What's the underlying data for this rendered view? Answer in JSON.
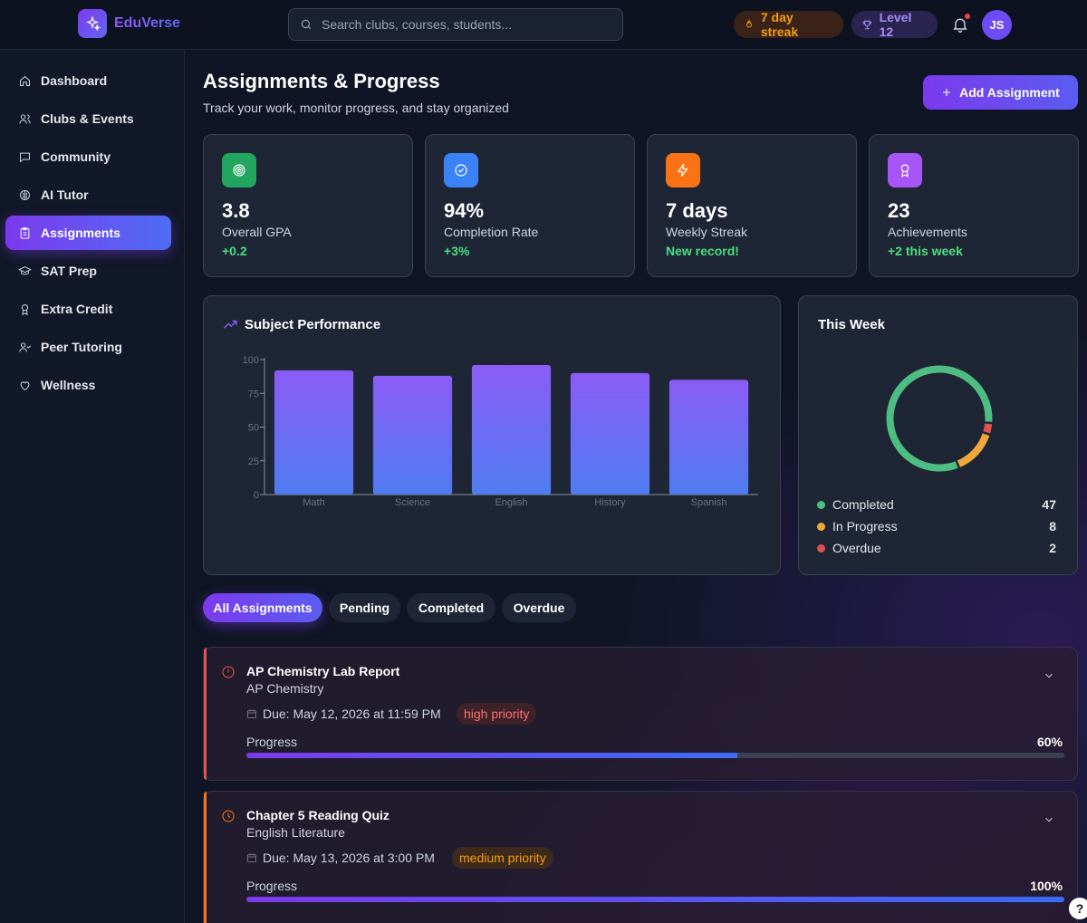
{
  "app": {
    "name": "EduVerse",
    "logo_icon": "sparkle-icon"
  },
  "search": {
    "placeholder": "Search clubs, courses, students..."
  },
  "header_pills": {
    "streak": "7 day streak",
    "level": "Level 12",
    "avatar_initials": "JS"
  },
  "sidebar": {
    "items": [
      {
        "label": "Dashboard",
        "icon": "home-icon"
      },
      {
        "label": "Clubs & Events",
        "icon": "users-icon"
      },
      {
        "label": "Community",
        "icon": "message-icon"
      },
      {
        "label": "AI Tutor",
        "icon": "brain-icon"
      },
      {
        "label": "Assignments",
        "icon": "clipboard-icon",
        "active": true
      },
      {
        "label": "SAT Prep",
        "icon": "graduation-cap-icon"
      },
      {
        "label": "Extra Credit",
        "icon": "award-icon"
      },
      {
        "label": "Peer Tutoring",
        "icon": "user-check-icon"
      },
      {
        "label": "Wellness",
        "icon": "heart-icon"
      }
    ]
  },
  "page": {
    "title": "Assignments & Progress",
    "subtitle": "Track your work, monitor progress, and stay organized",
    "add_button": "Add Assignment"
  },
  "stats": [
    {
      "value": "3.8",
      "label": "Overall GPA",
      "delta": "+0.2",
      "icon": "target-icon",
      "color": "#22a55e"
    },
    {
      "value": "94%",
      "label": "Completion Rate",
      "delta": "+3%",
      "icon": "check-circle-icon",
      "color": "#3b82f6"
    },
    {
      "value": "7 days",
      "label": "Weekly Streak",
      "delta": "New record!",
      "icon": "zap-icon",
      "color": "#f97316"
    },
    {
      "value": "23",
      "label": "Achievements",
      "delta": "+2 this week",
      "icon": "award-icon",
      "color": "#a855f7"
    }
  ],
  "performance": {
    "title": "Subject Performance",
    "icon": "trending-up-icon"
  },
  "chart_data": {
    "type": "bar",
    "categories": [
      "Math",
      "Science",
      "English",
      "History",
      "Spanish"
    ],
    "values": [
      92,
      88,
      96,
      90,
      85
    ],
    "yticks": [
      "0",
      "25",
      "50",
      "75",
      "100"
    ],
    "ylim": [
      0,
      100
    ],
    "colors": {
      "top": "#8b5cf6",
      "bottom": "#4f7cf0"
    }
  },
  "week": {
    "title": "This Week",
    "legend": [
      {
        "label": "Completed",
        "value": "47",
        "color": "#4ebd82"
      },
      {
        "label": "In Progress",
        "value": "8",
        "color": "#f0a83a"
      },
      {
        "label": "Overdue",
        "value": "2",
        "color": "#e05252"
      }
    ]
  },
  "tabs": [
    "All Assignments",
    "Pending",
    "Completed",
    "Overdue"
  ],
  "assignments": [
    {
      "title": "AP Chemistry Lab Report",
      "course": "AP Chemistry",
      "due": "Due: May 12, 2026 at 11:59 PM",
      "priority": "high priority",
      "progress_label": "Progress",
      "progress_text": "60%",
      "progress": 0.6,
      "status_icon": "alert-circle-icon",
      "accent": "#e05252"
    },
    {
      "title": "Chapter 5 Reading Quiz",
      "course": "English Literature",
      "due": "Due: May 13, 2026 at 3:00 PM",
      "priority": "medium priority",
      "progress_label": "Progress",
      "progress_text": "100%",
      "progress": 1.0,
      "status_icon": "clock-icon",
      "accent": "#f97316"
    }
  ],
  "help_label": "?"
}
